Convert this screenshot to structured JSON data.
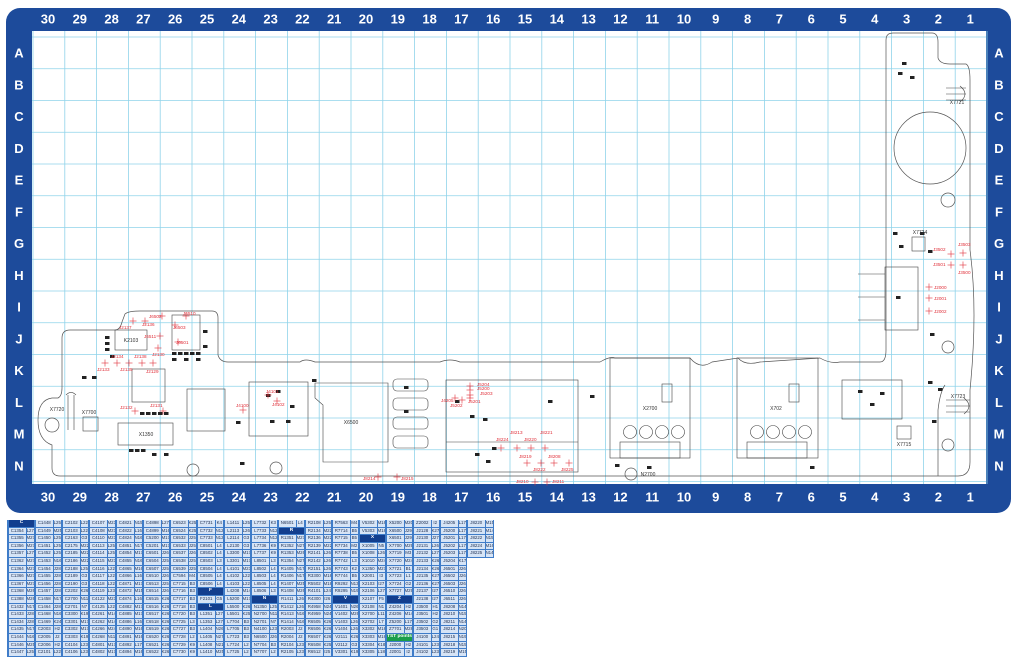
{
  "frame": {
    "columns": [
      "30",
      "29",
      "28",
      "27",
      "26",
      "25",
      "24",
      "23",
      "22",
      "21",
      "20",
      "19",
      "18",
      "17",
      "16",
      "15",
      "14",
      "13",
      "12",
      "11",
      "10",
      "9",
      "8",
      "7",
      "6",
      "5",
      "4",
      "3",
      "2",
      "1"
    ],
    "rows": [
      "A",
      "B",
      "C",
      "D",
      "E",
      "F",
      "G",
      "H",
      "I",
      "J",
      "K",
      "L",
      "M",
      "N"
    ],
    "colors": {
      "frame": "#1d4b9b",
      "grid": "#8fd3ea",
      "outline": "#555555",
      "test_point": "#e0303a"
    }
  },
  "components": {
    "X7721": "X7721",
    "X7724": "X7724",
    "X7720": "X7720",
    "X7700": "X7700",
    "X1350": "X1350",
    "K2103": "K2103",
    "X2700": "X2700",
    "X702": "X702",
    "X7723": "X7723",
    "X7715": "X7715",
    "X6500": "X6500",
    "N2700": "N2700"
  },
  "test_points": [
    "J3502",
    "J3503",
    "J3501",
    "J3500",
    "J2000",
    "J2001",
    "J2002",
    "J2137",
    "J2136",
    "J6502",
    "J6510",
    "J6503",
    "J6511",
    "J6501",
    "J2130",
    "J2134",
    "J2138",
    "J2133",
    "J2135",
    "J2129",
    "J2132",
    "J2131",
    "J4100",
    "J4101",
    "J4102",
    "J5204",
    "J5200",
    "J5203",
    "J4205",
    "J5202",
    "J5201",
    "J8213",
    "J8224",
    "J8220",
    "J8221",
    "J8219",
    "J8208",
    "J8222",
    "J8225",
    "J8214",
    "J8215",
    "J8210",
    "J8211"
  ],
  "parts_table": {
    "groups": [
      [
        {
          "header": "C"
        },
        [
          "C1354",
          "L27"
        ],
        [
          "C1355",
          "M27"
        ],
        [
          "C1356",
          "M27"
        ],
        [
          "C1357",
          "L27"
        ],
        [
          "C1362",
          "M27"
        ],
        [
          "C1364",
          "M27"
        ],
        [
          "C1366",
          "M27"
        ],
        [
          "C1367",
          "M27"
        ],
        [
          "C1368",
          "M26"
        ],
        [
          "C1388",
          "M26"
        ],
        [
          "C1432",
          "N17"
        ],
        [
          "C1433",
          "J28"
        ],
        [
          "C1434",
          "J28"
        ],
        [
          "C1435",
          "N17"
        ],
        [
          "C1444",
          "N16"
        ],
        [
          "C1446",
          "M25"
        ],
        [
          "C1447",
          "L25"
        ]
      ],
      [
        [
          "C1448",
          "L25"
        ],
        [
          "C1449",
          "M25"
        ],
        [
          "C1450",
          "L25"
        ],
        [
          "C1451",
          "L25"
        ],
        [
          "C1452",
          "L25"
        ],
        [
          "C1453",
          "N16"
        ],
        [
          "C1454",
          "J28"
        ],
        [
          "C1455",
          "J28"
        ],
        [
          "C1456",
          "J28"
        ],
        [
          "C1457",
          "J28"
        ],
        [
          "C1458",
          "N17"
        ],
        [
          "C1464",
          "J28"
        ],
        [
          "C1468",
          "N16"
        ],
        [
          "C1469",
          "K24"
        ],
        [
          "C2003",
          "H2"
        ],
        [
          "C2005",
          "J2"
        ],
        [
          "C2006",
          "H2"
        ],
        [
          "C2101",
          "L22"
        ]
      ],
      [
        [
          "C2102",
          "L22"
        ],
        [
          "C2103",
          "L22"
        ],
        [
          "C2163",
          "G3"
        ],
        [
          "C2175",
          "M22"
        ],
        [
          "C2185",
          "M22"
        ],
        [
          "C2186",
          "M22"
        ],
        [
          "C2188",
          "L25"
        ],
        [
          "C2189",
          "G3"
        ],
        [
          "C2190",
          "G3"
        ],
        [
          "C2202",
          "K26"
        ],
        [
          "C2700",
          "N11"
        ],
        [
          "C2701",
          "N7"
        ],
        [
          "C3300",
          "K19"
        ],
        [
          "C3301",
          "M17"
        ],
        [
          "C3302",
          "M17"
        ],
        [
          "C3303",
          "K19"
        ],
        [
          "C4104",
          "L23"
        ],
        [
          "C4106",
          "L23"
        ]
      ],
      [
        [
          "C4107",
          "M23"
        ],
        [
          "C4108",
          "M23"
        ],
        [
          "C4110",
          "M23"
        ],
        [
          "C4113",
          "L25"
        ],
        [
          "C4114",
          "L25"
        ],
        [
          "C4115",
          "M23"
        ],
        [
          "C4116",
          "L22"
        ],
        [
          "C4117",
          "L22"
        ],
        [
          "C4118",
          "L22"
        ],
        [
          "C4119",
          "L23"
        ],
        [
          "C4122",
          "M23"
        ],
        [
          "C4125",
          "L22"
        ],
        [
          "C4261",
          "M14"
        ],
        [
          "C4262",
          "M14"
        ],
        [
          "C4266",
          "M24"
        ],
        [
          "C4268",
          "N11"
        ],
        [
          "C4801",
          "M17"
        ],
        [
          "C4802",
          "M17"
        ]
      ],
      [
        [
          "C4821",
          "N15"
        ],
        [
          "C4822",
          "L16"
        ],
        [
          "C4824",
          "N16"
        ],
        [
          "C4851",
          "N17"
        ],
        [
          "C4854",
          "M17"
        ],
        [
          "C4855",
          "N16"
        ],
        [
          "C4865",
          "M16"
        ],
        [
          "C4866",
          "L16"
        ],
        [
          "C4871",
          "M17"
        ],
        [
          "C4872",
          "M15"
        ],
        [
          "C4874",
          "L16"
        ],
        [
          "C4882",
          "M17"
        ],
        [
          "C4885",
          "M17"
        ],
        [
          "C4886",
          "L16"
        ],
        [
          "C4890",
          "M16"
        ],
        [
          "C4891",
          "M16"
        ],
        [
          "C4892",
          "L17"
        ],
        [
          "C4894",
          "M16"
        ]
      ],
      [
        [
          "C4898",
          "L27"
        ],
        [
          "C4899",
          "M16"
        ],
        [
          "C5200",
          "M17"
        ],
        [
          "C5201",
          "M17"
        ],
        [
          "C6501",
          "J26"
        ],
        [
          "C6504",
          "J25"
        ],
        [
          "C6507",
          "J25"
        ],
        [
          "C6510",
          "J26"
        ],
        [
          "C6513",
          "J25"
        ],
        [
          "C6514",
          "J26"
        ],
        [
          "C6515",
          "K26"
        ],
        [
          "C6516",
          "K26"
        ],
        [
          "C6517",
          "K26"
        ],
        [
          "C6518",
          "K26"
        ],
        [
          "C6519",
          "K26"
        ],
        [
          "C6520",
          "K26"
        ],
        [
          "C6521",
          "K26"
        ],
        [
          "C6522",
          "K26"
        ]
      ],
      [
        [
          "C6523",
          "K25"
        ],
        [
          "C6524",
          "K25"
        ],
        [
          "C6532",
          "J25"
        ],
        [
          "C6533",
          "J25"
        ],
        [
          "C6537",
          "J26"
        ],
        [
          "C6538",
          "J25"
        ],
        [
          "C6539",
          "J25"
        ],
        [
          "C7594",
          "M4"
        ],
        [
          "C7715",
          "B3"
        ],
        [
          "C7716",
          "B3"
        ],
        [
          "C7717",
          "B3"
        ],
        [
          "C7718",
          "B3"
        ],
        [
          "C7720",
          "B3"
        ],
        [
          "C7725",
          "L3"
        ],
        [
          "C7727",
          "B3"
        ],
        [
          "C7728",
          "L2"
        ],
        [
          "C7729",
          "K9"
        ],
        [
          "C7730",
          "K9"
        ]
      ],
      [
        [
          "C7731",
          "K4"
        ],
        [
          "C7732",
          "N12"
        ],
        [
          "C7733",
          "N12"
        ],
        [
          "C8501",
          "L4"
        ],
        [
          "C8502",
          "L4"
        ],
        [
          "C8503",
          "L3"
        ],
        [
          "C8504",
          "L4"
        ],
        [
          "C8505",
          "L4"
        ],
        [
          "C8506",
          "L4"
        ],
        {
          "header": "F"
        },
        [
          "F2101",
          "G5"
        ],
        {
          "header": "L"
        },
        [
          "L1351",
          "L27"
        ],
        [
          "L1353",
          "L27"
        ],
        [
          "L1404",
          "N26"
        ],
        [
          "L1405",
          "N27"
        ],
        [
          "L1408",
          "N21"
        ],
        [
          "L1410",
          "M25"
        ]
      ],
      [
        [
          "L1411",
          "L25"
        ],
        [
          "L2113",
          "L26"
        ],
        [
          "L2114",
          "G3"
        ],
        [
          "L2130",
          "G3"
        ],
        [
          "L3300",
          "M17"
        ],
        [
          "L3301",
          "M17"
        ],
        [
          "L4101",
          "M23"
        ],
        [
          "L4102",
          "L22"
        ],
        [
          "L4103",
          "L22"
        ],
        [
          "L4208",
          "M14"
        ],
        [
          "L5200",
          "M17"
        ],
        [
          "L5500",
          "K26"
        ],
        [
          "L5501",
          "K25"
        ],
        [
          "L7704",
          "B3"
        ],
        [
          "L7705",
          "B3"
        ],
        [
          "L7723",
          "B3"
        ],
        [
          "L7724",
          "L2"
        ],
        [
          "L7725",
          "L2"
        ]
      ],
      [
        [
          "L7732",
          "K3"
        ],
        [
          "L7733",
          "N12"
        ],
        [
          "L7734",
          "N12"
        ],
        [
          "L7736",
          "K9"
        ],
        [
          "L7737",
          "K9"
        ],
        [
          "L8501",
          "L3"
        ],
        [
          "L8502",
          "L4"
        ],
        [
          "L8503",
          "L4"
        ],
        [
          "L8505",
          "L4"
        ],
        [
          "L8506",
          "L3"
        ],
        {
          "header": "N"
        },
        [
          "N1350",
          "L25"
        ],
        [
          "N2700",
          "N11"
        ],
        [
          "N2701",
          "N7"
        ],
        [
          "N4100",
          "L23"
        ],
        [
          "N6500",
          "J26"
        ],
        [
          "N7704",
          "B3"
        ],
        [
          "N7707",
          "L2"
        ]
      ],
      [
        [
          "N6501",
          "L4"
        ],
        {
          "header": "R"
        },
        [
          "R1351",
          "M27"
        ],
        [
          "R1352",
          "N27"
        ],
        [
          "R1353",
          "M26"
        ],
        [
          "R1354",
          "N27"
        ],
        [
          "R1405",
          "N17"
        ],
        [
          "R1406",
          "N17"
        ],
        [
          "R1407",
          "M25"
        ],
        [
          "R1408",
          "M26"
        ],
        [
          "R1411",
          "L26"
        ],
        [
          "R1412",
          "L26"
        ],
        [
          "R1413",
          "N16"
        ],
        [
          "R1414",
          "N16"
        ],
        [
          "R2003",
          "J2"
        ],
        [
          "R2004",
          "J2"
        ],
        [
          "R2104",
          "L23"
        ],
        [
          "R2105",
          "L23"
        ]
      ],
      [
        [
          "R2108",
          "L25"
        ],
        [
          "R2134",
          "M22"
        ],
        [
          "R2136",
          "M22"
        ],
        [
          "R2139",
          "M22"
        ],
        [
          "R2141",
          "L26"
        ],
        [
          "R2142",
          "L26"
        ],
        [
          "R2151",
          "L26"
        ],
        [
          "R3300",
          "M18"
        ],
        [
          "R5502",
          "M18"
        ],
        [
          "R4101",
          "L24"
        ],
        [
          "R4300",
          "I26"
        ],
        [
          "R4958",
          "N24"
        ],
        [
          "R4959",
          "N24"
        ],
        [
          "R6505",
          "K26"
        ],
        [
          "R6506",
          "K26"
        ],
        [
          "R6507",
          "K26"
        ],
        [
          "R6508",
          "K25"
        ],
        [
          "R6512",
          "I25"
        ]
      ],
      [
        [
          "R7563",
          "M4"
        ],
        [
          "R7714",
          "B5"
        ],
        [
          "R7715",
          "B5"
        ],
        [
          "R7734",
          "M2"
        ],
        [
          "R7738",
          "B5"
        ],
        [
          "R7742",
          "L3"
        ],
        [
          "R7743",
          "K2"
        ],
        [
          "R7744",
          "B5"
        ],
        [
          "R9292",
          "N13"
        ],
        [
          "R9295",
          "N19"
        ],
        {
          "header": "V"
        },
        [
          "V1401",
          "N26"
        ],
        [
          "V1402",
          "M26"
        ],
        [
          "V1403",
          "L26"
        ],
        [
          "V1404",
          "L26"
        ],
        [
          "V2111",
          "K26"
        ],
        [
          "V2112",
          "G3"
        ],
        [
          "V3301",
          "K19"
        ]
      ],
      [
        [
          "V5302",
          "M18"
        ],
        [
          "V5303",
          "M18"
        ],
        {
          "header": "X"
        },
        [
          "X1005",
          "N5"
        ],
        [
          "X1008",
          "L26"
        ],
        [
          "X1010",
          "M24"
        ],
        [
          "X1350",
          "M27"
        ],
        [
          "X2001",
          "I3"
        ],
        [
          "X2103",
          "I27"
        ],
        [
          "X2106",
          "L27"
        ],
        [
          "X2107",
          "F5"
        ],
        [
          "X2108",
          "N1"
        ],
        [
          "X2700",
          "L11"
        ],
        [
          "X2702",
          "L7"
        ],
        [
          "X3302",
          "M18"
        ],
        [
          "X3303",
          "M18"
        ],
        [
          "X3304",
          "K18"
        ],
        [
          "X3305",
          "L18"
        ]
      ],
      [
        [
          "X5200",
          "M20"
        ],
        [
          "X6500",
          "J29"
        ],
        [
          "X6501",
          "J29"
        ],
        [
          "X7700",
          "M29"
        ],
        [
          "X7719",
          "M3"
        ],
        [
          "X7720",
          "M24"
        ],
        [
          "X7721",
          "B1"
        ],
        [
          "X7723",
          "L1"
        ],
        [
          "X7724",
          "G2"
        ],
        [
          "X7727",
          "M29"
        ],
        {
          "header": "Z"
        },
        [
          "Z4204",
          "H2"
        ],
        [
          "Z4206",
          "M14"
        ],
        [
          "Z5200",
          "L17"
        ],
        [
          "Z7701",
          "M28"
        ],
        {
          "header": "TST points",
          "color": "#1a9e4a"
        },
        [
          "J2000",
          "H2"
        ],
        [
          "J2001",
          "I2"
        ]
      ],
      [
        [
          "Z2002",
          "I2"
        ],
        [
          "J2128",
          "K27"
        ],
        [
          "J2130",
          "J27"
        ],
        [
          "J2131",
          "L26"
        ],
        [
          "J2132",
          "L27"
        ],
        [
          "J2133",
          "K26"
        ],
        [
          "J2134",
          "K26"
        ],
        [
          "J2135",
          "K27"
        ],
        [
          "J2136",
          "K27"
        ],
        [
          "J2137",
          "I27"
        ],
        [
          "J2138",
          "I27"
        ],
        [
          "J3500",
          "H1"
        ],
        [
          "J3501",
          "H2"
        ],
        [
          "J3502",
          "G2"
        ],
        [
          "J3503",
          "G1"
        ],
        [
          "J4100",
          "L24"
        ],
        [
          "J4101",
          "L23"
        ],
        [
          "J4102",
          "L23"
        ]
      ],
      [
        [
          "J4205",
          "L17"
        ],
        [
          "J5200",
          "L17"
        ],
        [
          "J5201",
          "L17"
        ],
        [
          "J5202",
          "L17"
        ],
        [
          "J5203",
          "L17"
        ],
        [
          "J5204",
          "K17"
        ],
        [
          "J6501",
          "J26"
        ],
        [
          "J6502",
          "J26"
        ],
        [
          "J6503",
          "J26"
        ],
        [
          "J6510",
          "J26"
        ],
        [
          "J6511",
          "J26"
        ],
        [
          "J8208",
          "N14"
        ],
        [
          "J8210",
          "N15"
        ],
        [
          "J8211",
          "N14"
        ],
        [
          "J8214",
          "N20"
        ],
        [
          "J8215",
          "N19"
        ],
        [
          "J8218",
          "N15"
        ],
        [
          "J8219",
          "M15"
        ]
      ],
      [
        [
          "J8220",
          "M15"
        ],
        [
          "J8221",
          "M14"
        ],
        [
          "J8222",
          "N15"
        ],
        [
          "J8224",
          "M16"
        ],
        [
          "J8225",
          "N14"
        ]
      ]
    ]
  }
}
